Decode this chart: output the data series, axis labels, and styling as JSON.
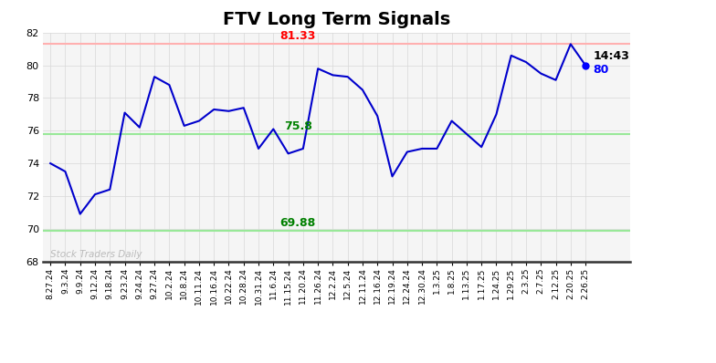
{
  "title": "FTV Long Term Signals",
  "x_labels": [
    "8.27.24",
    "9.3.24",
    "9.9.24",
    "9.12.24",
    "9.18.24",
    "9.23.24",
    "9.24.24",
    "9.27.24",
    "10.2.24",
    "10.8.24",
    "10.11.24",
    "10.16.24",
    "10.22.24",
    "10.28.24",
    "10.31.24",
    "11.6.24",
    "11.15.24",
    "11.20.24",
    "11.26.24",
    "12.2.24",
    "12.5.24",
    "12.11.24",
    "12.16.24",
    "12.19.24",
    "12.24.24",
    "12.30.24",
    "1.3.25",
    "1.8.25",
    "1.13.25",
    "1.17.25",
    "1.24.25",
    "1.29.25",
    "2.3.25",
    "2.7.25",
    "2.12.25",
    "2.20.25",
    "2.26.25"
  ],
  "y_values": [
    74.0,
    73.5,
    70.9,
    72.1,
    72.4,
    77.1,
    76.2,
    79.3,
    78.8,
    76.3,
    76.6,
    77.3,
    77.2,
    77.4,
    74.9,
    76.1,
    74.6,
    74.9,
    79.8,
    79.4,
    79.3,
    78.5,
    76.9,
    73.2,
    74.7,
    74.9,
    74.9,
    76.6,
    75.8,
    75.0,
    77.0,
    80.6,
    80.2,
    79.5,
    79.1,
    81.3,
    80.0
  ],
  "line_color": "#0000cc",
  "last_dot_color": "#0000ff",
  "hline_red": 81.33,
  "hline_green_upper": 75.8,
  "hline_green_lower": 69.88,
  "hline_red_color": "#ffb0b0",
  "hline_green_color": "#98e898",
  "red_label": "81.33",
  "green_upper_label": "75.8",
  "green_lower_label": "69.88",
  "annotation_time": "14:43",
  "annotation_price": "80",
  "watermark": "Stock Traders Daily",
  "ylim": [
    68,
    82
  ],
  "yticks": [
    68,
    70,
    72,
    74,
    76,
    78,
    80,
    82
  ],
  "bg_color": "#ffffff",
  "plot_bg_color": "#f5f5f5",
  "grid_color": "#d8d8d8",
  "title_fontsize": 14,
  "watermark_color": "#bbbbbb"
}
